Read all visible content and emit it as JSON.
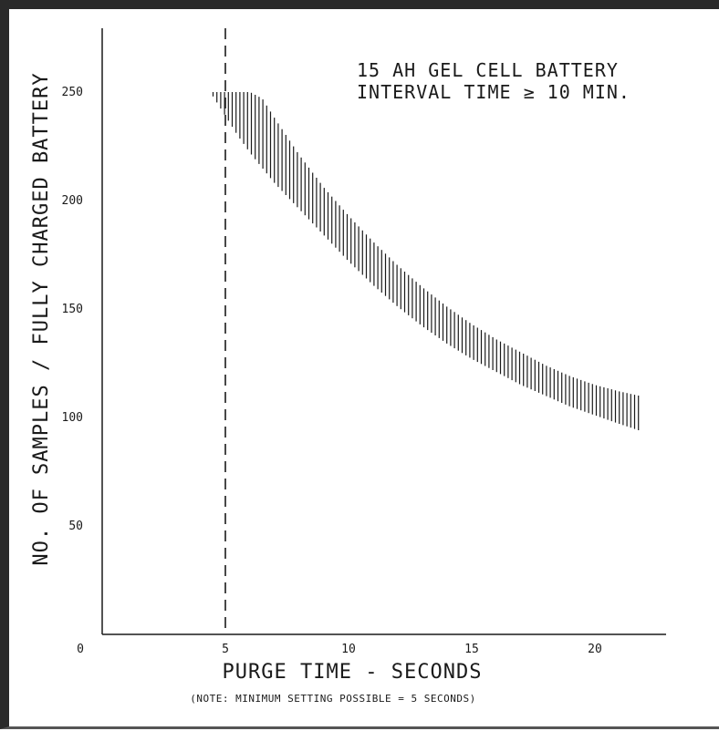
{
  "chart_data": {
    "type": "area",
    "title_lines": [
      "15 AH GEL CELL BATTERY",
      "INTERVAL TIME ≥ 10 MIN."
    ],
    "xlabel": "PURGE TIME - SECONDS",
    "ylabel": "NO. OF SAMPLES / FULLY CHARGED BATTERY",
    "note": "(NOTE: MINIMUM SETTING POSSIBLE = 5 SECONDS)",
    "xlim": [
      0,
      22.5
    ],
    "ylim": [
      0,
      280
    ],
    "x_ticks": [
      0,
      5,
      10,
      15,
      20
    ],
    "x_tick_labels": [
      "0",
      "5",
      "10",
      "15",
      "20"
    ],
    "y_ticks": [
      50,
      100,
      150,
      200,
      250
    ],
    "y_tick_labels": [
      "50",
      "100",
      "150",
      "200",
      "250"
    ],
    "reference_line": {
      "x": 5,
      "style": "dashed"
    },
    "band": {
      "x": [
        4.5,
        5,
        5.5,
        6,
        6.5,
        7,
        8,
        9,
        10,
        11,
        12,
        13,
        14,
        15,
        16,
        17,
        18,
        19,
        20,
        21,
        21.8
      ],
      "upper": [
        250,
        250,
        250,
        250,
        247,
        238,
        221,
        206,
        193,
        181,
        170,
        160,
        151,
        143,
        136,
        130,
        124,
        119,
        115,
        112,
        110
      ],
      "lower": [
        248,
        239,
        230,
        222,
        215,
        208,
        196,
        184,
        172,
        161,
        151,
        142,
        134,
        127,
        121,
        115,
        110,
        105,
        101,
        97,
        94
      ]
    },
    "hatch": "vertical",
    "grid": false
  },
  "colors": {
    "ink": "#1a1a1a",
    "frame": "#2a2a2a",
    "background": "#ffffff"
  }
}
